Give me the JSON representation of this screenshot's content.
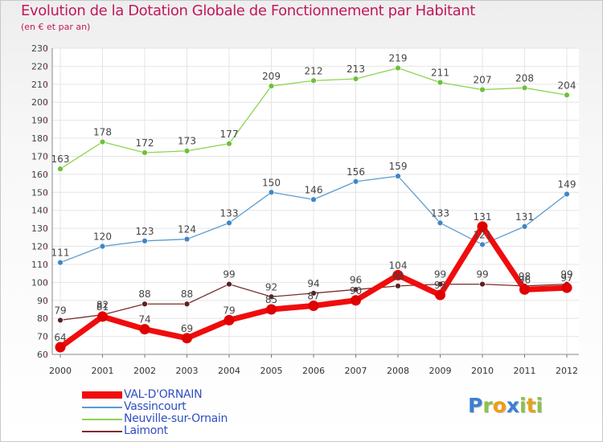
{
  "title": "Evolution de la Dotation Globale de Fonctionnement par Habitant",
  "subtitle": "(en € et par an)",
  "logo": {
    "letters": [
      {
        "ch": "P",
        "color": "#3b7fd4"
      },
      {
        "ch": "r",
        "color": "#8bc34a"
      },
      {
        "ch": "o",
        "color": "#f39c12"
      },
      {
        "ch": "x",
        "color": "#3b7fd4"
      },
      {
        "ch": "i",
        "color": "#8bc34a"
      },
      {
        "ch": "t",
        "color": "#e6a117"
      },
      {
        "ch": "i",
        "color": "#8bc34a"
      }
    ]
  },
  "chart_data": {
    "type": "line",
    "x": [
      "2000",
      "2001",
      "2002",
      "2003",
      "2004",
      "2005",
      "2006",
      "2007",
      "2008",
      "2009",
      "2010",
      "2011",
      "2012"
    ],
    "ylim": [
      60,
      230
    ],
    "yticks": [
      60,
      70,
      80,
      90,
      100,
      110,
      120,
      130,
      140,
      150,
      160,
      170,
      180,
      190,
      200,
      210,
      220,
      230
    ],
    "grid": true,
    "legend_position": "bottom-left",
    "series": [
      {
        "name": "Neuville-sur-Ornain",
        "color": "#8ed353",
        "marker": "#6cc13a",
        "width": 1.3,
        "values": [
          163,
          178,
          172,
          173,
          177,
          209,
          212,
          213,
          219,
          211,
          207,
          208,
          204
        ],
        "labels": [
          "163",
          "178",
          "172",
          "173",
          "177",
          "209",
          "212",
          "213",
          "219",
          "211",
          "207",
          "208",
          "204"
        ]
      },
      {
        "name": "Vassincourt",
        "color": "#5b9bd0",
        "marker": "#3f86c6",
        "width": 1.3,
        "values": [
          111,
          120,
          123,
          124,
          133,
          150,
          146,
          156,
          159,
          133,
          121,
          131,
          149
        ],
        "labels": [
          "111",
          "120",
          "123",
          "124",
          "133",
          "150",
          "146",
          "156",
          "159",
          "133",
          "121",
          "131",
          "149"
        ]
      },
      {
        "name": "Laimont",
        "color": "#7a2e2e",
        "marker": "#5e1f1f",
        "width": 1.3,
        "values": [
          79,
          82,
          88,
          88,
          99,
          92,
          94,
          96,
          98,
          99,
          99,
          98,
          99
        ],
        "labels": [
          "79",
          "82",
          "88",
          "88",
          "99",
          "92",
          "94",
          "96",
          "98",
          "99",
          "99",
          "98",
          "99"
        ]
      },
      {
        "name": "VAL-D'ORNAIN",
        "color": "#f00c0c",
        "marker": "#e00000",
        "width": 7,
        "values": [
          64,
          81,
          74,
          69,
          79,
          85,
          87,
          90,
          104,
          93,
          131,
          96,
          97
        ],
        "labels": [
          "64",
          "81",
          "74",
          "69",
          "79",
          "85",
          "87",
          "90",
          "104",
          "93",
          "131",
          "96",
          "97"
        ]
      }
    ],
    "legend_order": [
      "VAL-D'ORNAIN",
      "Vassincourt",
      "Neuville-sur-Ornain",
      "Laimont"
    ]
  }
}
